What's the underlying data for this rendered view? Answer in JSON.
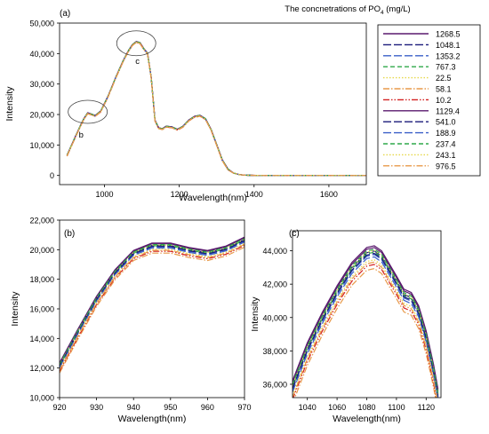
{
  "header": {
    "legend_title_pre": "The concnetrations of PO",
    "legend_title_sub": "4",
    "legend_title_post": " (mg/L)"
  },
  "legend": [
    {
      "label": "1268.5",
      "color": "#5a1a6e",
      "dash": "solid"
    },
    {
      "label": "1048.1",
      "color": "#1a1a7a",
      "dash": "longdash"
    },
    {
      "label": "1353.2",
      "color": "#3a5fc8",
      "dash": "longdash"
    },
    {
      "label": "767.3",
      "color": "#2ea84a",
      "dash": "dash"
    },
    {
      "label": "22.5",
      "color": "#e6d84a",
      "dash": "dot"
    },
    {
      "label": "58.1",
      "color": "#e89a4a",
      "dash": "dashdot"
    },
    {
      "label": "10.2",
      "color": "#d42020",
      "dash": "dashdotdot"
    },
    {
      "label": "1129.4",
      "color": "#5a1a6e",
      "dash": "solid"
    },
    {
      "label": "541.0",
      "color": "#1a1a7a",
      "dash": "longdash"
    },
    {
      "label": "188.9",
      "color": "#3a5fc8",
      "dash": "longdash"
    },
    {
      "label": "237.4",
      "color": "#2ea84a",
      "dash": "dash"
    },
    {
      "label": "243.1",
      "color": "#e6d84a",
      "dash": "dot"
    },
    {
      "label": "976.5",
      "color": "#e89a4a",
      "dash": "dashdot"
    }
  ],
  "chart_data": [
    {
      "panel_label": "(a)",
      "type": "line",
      "xlabel": "Wavelength(nm)",
      "ylabel": "Intensity",
      "xlim": [
        880,
        1700
      ],
      "ylim": [
        -3000,
        50000
      ],
      "xticks": [
        1000,
        1200,
        1400,
        1600
      ],
      "xtick_labels": [
        "1000",
        "1200",
        "1400",
        "1600"
      ],
      "yticks": [
        0,
        10000,
        20000,
        30000,
        40000,
        50000
      ],
      "ytick_labels": [
        "0",
        "10,000",
        "20,000",
        "30,000",
        "40,000",
        "50,000"
      ],
      "x": [
        900,
        920,
        935,
        945,
        955,
        965,
        975,
        990,
        1010,
        1030,
        1050,
        1065,
        1075,
        1085,
        1095,
        1105,
        1115,
        1125,
        1135,
        1145,
        1155,
        1165,
        1180,
        1195,
        1210,
        1225,
        1240,
        1255,
        1270,
        1285,
        1300,
        1315,
        1330,
        1345,
        1360,
        1375,
        1390,
        1420,
        1500,
        1600,
        1700
      ],
      "series_base": [
        6500,
        12000,
        16000,
        18500,
        20400,
        20000,
        19500,
        21000,
        26000,
        32000,
        37500,
        41000,
        42800,
        43800,
        43400,
        41500,
        40000,
        32000,
        18000,
        15500,
        15200,
        16000,
        15800,
        15000,
        16000,
        18000,
        19200,
        19600,
        18500,
        15000,
        10000,
        5000,
        2000,
        800,
        300,
        100,
        50,
        0,
        0,
        0,
        0
      ],
      "annotations": [
        {
          "text": "b",
          "x": 960,
          "y": 20000
        },
        {
          "text": "c",
          "x": 1085,
          "y": 42500
        }
      ]
    },
    {
      "panel_label": "(b)",
      "type": "line",
      "xlabel": "Wavelength(nm)",
      "ylabel": "Intensity",
      "xlim": [
        920,
        970
      ],
      "ylim": [
        10000,
        22000
      ],
      "xticks": [
        920,
        930,
        940,
        950,
        960,
        970
      ],
      "xtick_labels": [
        "920",
        "930",
        "940",
        "950",
        "960",
        "970"
      ],
      "yticks": [
        10000,
        12000,
        14000,
        16000,
        18000,
        20000,
        22000
      ],
      "ytick_labels": [
        "10,000",
        "12,000",
        "14,000",
        "16,000",
        "18,000",
        "20,000",
        "22,000"
      ],
      "x": [
        920,
        925,
        930,
        935,
        940,
        945,
        950,
        955,
        960,
        965,
        970
      ],
      "series_base": [
        12000,
        14300,
        16500,
        18300,
        19600,
        20100,
        20100,
        19800,
        19600,
        19900,
        20500
      ],
      "spread": 350
    },
    {
      "panel_label": "(c)",
      "type": "line",
      "xlabel": "Wavelength(nm)",
      "ylabel": "Intensity",
      "xlim": [
        1030,
        1130
      ],
      "ylim": [
        35200,
        45200
      ],
      "xticks": [
        1040,
        1060,
        1080,
        1100,
        1120
      ],
      "xtick_labels": [
        "1040",
        "1060",
        "1080",
        "1100",
        "1120"
      ],
      "yticks": [
        36000,
        38000,
        40000,
        42000,
        44000
      ],
      "ytick_labels": [
        "36,000",
        "38,000",
        "40,000",
        "42,000",
        "44,000"
      ],
      "x": [
        1030,
        1040,
        1050,
        1060,
        1070,
        1080,
        1085,
        1090,
        1100,
        1105,
        1110,
        1115,
        1120,
        1125,
        1128
      ],
      "series_base": [
        35500,
        37800,
        39600,
        41200,
        42600,
        43500,
        43600,
        43300,
        41800,
        41000,
        40800,
        40000,
        38500,
        36500,
        35000
      ],
      "spread": 700
    }
  ]
}
